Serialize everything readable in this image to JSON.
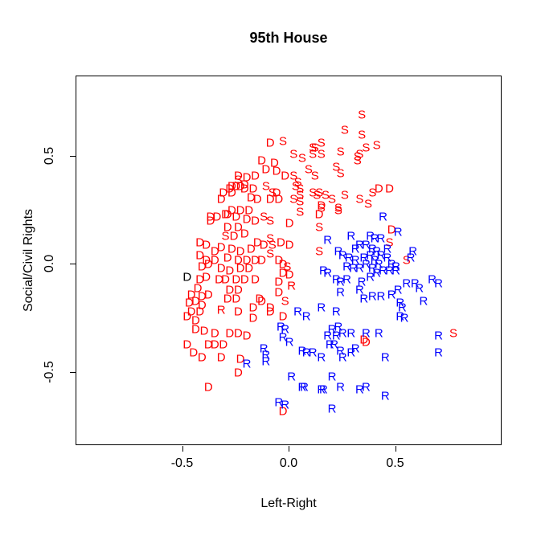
{
  "chart_data": {
    "type": "scatter",
    "title": "95th House",
    "xlabel": "Left-Right",
    "ylabel": "Social/Civil Rights",
    "xlim": [
      -1.0,
      1.0
    ],
    "ylim": [
      -0.84,
      0.87
    ],
    "grid": false,
    "x_ticks": [
      {
        "value": -0.5,
        "label": "-0.5"
      },
      {
        "value": 0.0,
        "label": "0.0"
      },
      {
        "value": 0.5,
        "label": "0.5"
      }
    ],
    "y_ticks": [
      {
        "value": -0.5,
        "label": "-0.5"
      },
      {
        "value": 0.0,
        "label": "0.0"
      },
      {
        "value": 0.5,
        "label": "0.5"
      }
    ],
    "point_colors": {
      "red": "#ff0000",
      "blue": "#0000ff",
      "black": "#000000"
    },
    "series": [
      {
        "name": "D-red",
        "letter": "D",
        "color": "#ff0000",
        "points": [
          [
            -0.09,
            0.56
          ],
          [
            -0.13,
            0.48
          ],
          [
            -0.07,
            0.47
          ],
          [
            -0.11,
            0.44
          ],
          [
            -0.06,
            0.43
          ],
          [
            -0.02,
            0.41
          ],
          [
            -0.24,
            0.41
          ],
          [
            -0.2,
            0.4
          ],
          [
            -0.16,
            0.41
          ],
          [
            -0.27,
            0.36
          ],
          [
            -0.25,
            0.36
          ],
          [
            -0.21,
            0.37
          ],
          [
            -0.17,
            0.35
          ],
          [
            -0.31,
            0.33
          ],
          [
            -0.28,
            0.35
          ],
          [
            -0.23,
            0.36
          ],
          [
            -0.21,
            0.35
          ],
          [
            -0.06,
            0.33
          ],
          [
            0.15,
            0.27
          ],
          [
            -0.32,
            0.3
          ],
          [
            -0.27,
            0.25
          ],
          [
            -0.34,
            0.22
          ],
          [
            -0.3,
            0.23
          ],
          [
            -0.37,
            0.22
          ],
          [
            -0.23,
            0.25
          ],
          [
            -0.19,
            0.25
          ],
          [
            0.14,
            0.23
          ],
          [
            0.0,
            0.19
          ],
          [
            -0.29,
            0.23
          ],
          [
            -0.25,
            0.22
          ],
          [
            -0.2,
            0.21
          ],
          [
            -0.16,
            0.2
          ],
          [
            -0.29,
            0.17
          ],
          [
            -0.24,
            0.17
          ],
          [
            -0.37,
            0.2
          ],
          [
            -0.26,
            0.13
          ],
          [
            -0.21,
            0.14
          ],
          [
            -0.42,
            0.1
          ],
          [
            -0.39,
            0.09
          ],
          [
            -0.15,
            0.1
          ],
          [
            -0.12,
            0.09
          ],
          [
            -0.04,
            0.1
          ],
          [
            0.0,
            0.09
          ],
          [
            -0.35,
            0.06
          ],
          [
            -0.42,
            0.04
          ],
          [
            -0.39,
            0.02
          ],
          [
            -0.35,
            0.02
          ],
          [
            -0.32,
            0.08
          ],
          [
            -0.27,
            0.07
          ],
          [
            -0.23,
            0.06
          ],
          [
            -0.18,
            0.07
          ],
          [
            -0.05,
            0.02
          ],
          [
            -0.41,
            -0.01
          ],
          [
            -0.38,
            0.0
          ],
          [
            -0.29,
            0.03
          ],
          [
            -0.24,
            0.02
          ],
          [
            -0.2,
            0.02
          ],
          [
            -0.16,
            0.02
          ],
          [
            -0.13,
            0.02
          ],
          [
            -0.03,
            0.0
          ],
          [
            -0.32,
            -0.02
          ],
          [
            -0.28,
            -0.03
          ],
          [
            -0.23,
            -0.02
          ],
          [
            -0.19,
            -0.02
          ],
          [
            -0.03,
            -0.04
          ],
          [
            0.0,
            -0.05
          ],
          [
            -0.42,
            -0.07
          ],
          [
            -0.39,
            -0.06
          ],
          [
            -0.33,
            -0.07
          ],
          [
            -0.3,
            -0.07
          ],
          [
            -0.25,
            -0.07
          ],
          [
            -0.21,
            -0.07
          ],
          [
            -0.16,
            -0.07
          ],
          [
            -0.05,
            -0.08
          ],
          [
            -0.43,
            -0.11
          ],
          [
            -0.46,
            -0.14
          ],
          [
            -0.41,
            -0.15
          ],
          [
            -0.38,
            -0.14
          ],
          [
            -0.28,
            -0.12
          ],
          [
            -0.24,
            -0.12
          ],
          [
            -0.05,
            -0.13
          ],
          [
            -0.47,
            -0.18
          ],
          [
            -0.44,
            -0.17
          ],
          [
            -0.41,
            -0.19
          ],
          [
            -0.29,
            -0.16
          ],
          [
            -0.25,
            -0.16
          ],
          [
            -0.14,
            -0.16
          ],
          [
            -0.13,
            -0.17
          ],
          [
            -0.46,
            -0.22
          ],
          [
            -0.42,
            -0.22
          ],
          [
            -0.09,
            -0.2
          ],
          [
            -0.17,
            -0.2
          ],
          [
            -0.48,
            -0.24
          ],
          [
            -0.44,
            -0.26
          ],
          [
            -0.24,
            -0.22
          ],
          [
            -0.09,
            -0.22
          ],
          [
            -0.03,
            -0.24
          ],
          [
            -0.17,
            -0.25
          ],
          [
            -0.44,
            -0.3
          ],
          [
            -0.4,
            -0.31
          ],
          [
            -0.35,
            -0.32
          ],
          [
            -0.48,
            -0.37
          ],
          [
            -0.38,
            -0.37
          ],
          [
            -0.35,
            -0.37
          ],
          [
            -0.45,
            -0.41
          ],
          [
            -0.41,
            -0.43
          ],
          [
            -0.38,
            -0.57
          ],
          [
            -0.28,
            -0.32
          ],
          [
            -0.24,
            -0.32
          ],
          [
            -0.2,
            -0.33
          ],
          [
            -0.31,
            -0.37
          ],
          [
            -0.32,
            -0.43
          ],
          [
            -0.23,
            -0.44
          ],
          [
            -0.24,
            -0.5
          ],
          [
            -0.03,
            -0.68
          ],
          [
            0.35,
            -0.35
          ],
          [
            0.42,
            0.35
          ],
          [
            0.47,
            0.35
          ],
          [
            0.48,
            0.16
          ],
          [
            0.36,
            -0.36
          ],
          [
            -0.27,
            0.33
          ],
          [
            -0.18,
            0.31
          ],
          [
            -0.15,
            0.3
          ],
          [
            -0.09,
            0.3
          ],
          [
            -0.05,
            0.3
          ]
        ]
      },
      {
        "name": "S-red",
        "letter": "S",
        "color": "#ff0000",
        "points": [
          [
            0.34,
            0.69
          ],
          [
            0.26,
            0.62
          ],
          [
            0.34,
            0.6
          ],
          [
            0.15,
            0.56
          ],
          [
            0.12,
            0.54
          ],
          [
            0.41,
            0.55
          ],
          [
            0.36,
            0.54
          ],
          [
            0.24,
            0.52
          ],
          [
            -0.03,
            0.57
          ],
          [
            0.02,
            0.51
          ],
          [
            0.06,
            0.49
          ],
          [
            0.11,
            0.54
          ],
          [
            0.11,
            0.51
          ],
          [
            0.15,
            0.51
          ],
          [
            0.32,
            0.5
          ],
          [
            0.33,
            0.51
          ],
          [
            0.32,
            0.48
          ],
          [
            -0.09,
            0.2
          ],
          [
            0.09,
            0.44
          ],
          [
            0.12,
            0.41
          ],
          [
            0.22,
            0.45
          ],
          [
            0.24,
            0.42
          ],
          [
            0.02,
            0.41
          ],
          [
            -0.24,
            0.39
          ],
          [
            0.04,
            0.38
          ],
          [
            0.05,
            0.35
          ],
          [
            0.11,
            0.33
          ],
          [
            0.14,
            0.33
          ],
          [
            0.26,
            0.32
          ],
          [
            0.39,
            0.33
          ],
          [
            0.37,
            0.28
          ],
          [
            -0.11,
            0.36
          ],
          [
            -0.08,
            0.33
          ],
          [
            0.03,
            0.36
          ],
          [
            0.05,
            0.32
          ],
          [
            0.13,
            0.32
          ],
          [
            0.17,
            0.32
          ],
          [
            0.2,
            0.3
          ],
          [
            0.33,
            0.3
          ],
          [
            0.23,
            0.26
          ],
          [
            0.05,
            0.29
          ],
          [
            0.02,
            0.3
          ],
          [
            -0.12,
            0.22
          ],
          [
            0.15,
            0.26
          ],
          [
            0.23,
            0.25
          ],
          [
            0.05,
            0.24
          ],
          [
            0.14,
            0.17
          ],
          [
            -0.09,
            0.12
          ],
          [
            -0.08,
            0.09
          ],
          [
            -0.09,
            0.05
          ],
          [
            -0.01,
            -0.01
          ],
          [
            0.14,
            0.06
          ],
          [
            0.47,
            0.1
          ],
          [
            0.55,
            0.02
          ],
          [
            -0.02,
            -0.17
          ],
          [
            0.77,
            -0.32
          ],
          [
            -0.3,
            0.13
          ]
        ]
      },
      {
        "name": "R-blue",
        "letter": "R",
        "color": "#0000ff",
        "points": [
          [
            0.18,
            0.11
          ],
          [
            0.29,
            0.13
          ],
          [
            0.23,
            0.06
          ],
          [
            0.25,
            0.04
          ],
          [
            0.31,
            0.07
          ],
          [
            0.33,
            0.09
          ],
          [
            0.28,
            0.03
          ],
          [
            0.31,
            0.02
          ],
          [
            0.35,
            0.03
          ],
          [
            0.27,
            -0.01
          ],
          [
            0.3,
            -0.02
          ],
          [
            0.33,
            -0.02
          ],
          [
            0.16,
            -0.03
          ],
          [
            0.18,
            -0.04
          ],
          [
            0.22,
            -0.07
          ],
          [
            0.24,
            -0.08
          ],
          [
            0.27,
            -0.07
          ],
          [
            0.34,
            -0.08
          ],
          [
            0.24,
            -0.13
          ],
          [
            0.33,
            -0.12
          ],
          [
            0.35,
            -0.16
          ],
          [
            0.44,
            0.22
          ],
          [
            0.51,
            0.15
          ],
          [
            0.38,
            0.13
          ],
          [
            0.4,
            0.12
          ],
          [
            0.43,
            0.12
          ],
          [
            0.46,
            0.07
          ],
          [
            0.58,
            0.06
          ],
          [
            0.36,
            0.09
          ],
          [
            0.39,
            0.07
          ],
          [
            0.41,
            0.06
          ],
          [
            0.38,
            0.04
          ],
          [
            0.43,
            0.04
          ],
          [
            0.46,
            0.03
          ],
          [
            0.4,
            0.02
          ],
          [
            0.36,
            0.0
          ],
          [
            0.42,
            0.0
          ],
          [
            0.48,
            0.0
          ],
          [
            0.5,
            -0.01
          ],
          [
            0.39,
            -0.02
          ],
          [
            0.44,
            -0.03
          ],
          [
            0.47,
            -0.03
          ],
          [
            0.5,
            -0.03
          ],
          [
            0.41,
            -0.04
          ],
          [
            0.57,
            0.03
          ],
          [
            0.38,
            -0.06
          ],
          [
            0.55,
            -0.09
          ],
          [
            0.59,
            -0.09
          ],
          [
            0.67,
            -0.07
          ],
          [
            0.7,
            -0.09
          ],
          [
            0.51,
            -0.12
          ],
          [
            0.61,
            -0.11
          ],
          [
            0.39,
            -0.15
          ],
          [
            0.43,
            -0.15
          ],
          [
            0.48,
            -0.14
          ],
          [
            0.52,
            -0.18
          ],
          [
            0.63,
            -0.17
          ],
          [
            0.53,
            -0.2
          ],
          [
            0.52,
            -0.24
          ],
          [
            0.54,
            -0.25
          ],
          [
            0.04,
            -0.22
          ],
          [
            0.08,
            -0.24
          ],
          [
            0.15,
            -0.2
          ],
          [
            0.22,
            -0.22
          ],
          [
            -0.2,
            -0.46
          ],
          [
            -0.12,
            -0.39
          ],
          [
            -0.11,
            -0.42
          ],
          [
            -0.11,
            -0.45
          ],
          [
            -0.04,
            -0.29
          ],
          [
            -0.02,
            -0.3
          ],
          [
            -0.03,
            -0.34
          ],
          [
            0.0,
            -0.36
          ],
          [
            0.06,
            -0.4
          ],
          [
            0.08,
            -0.41
          ],
          [
            0.11,
            -0.41
          ],
          [
            0.15,
            -0.43
          ],
          [
            0.18,
            -0.33
          ],
          [
            0.2,
            -0.3
          ],
          [
            0.23,
            -0.29
          ],
          [
            0.25,
            -0.32
          ],
          [
            0.22,
            -0.33
          ],
          [
            0.19,
            -0.37
          ],
          [
            0.21,
            -0.37
          ],
          [
            0.24,
            -0.4
          ],
          [
            0.29,
            -0.32
          ],
          [
            0.31,
            -0.39
          ],
          [
            0.29,
            -0.41
          ],
          [
            0.25,
            -0.43
          ],
          [
            0.01,
            -0.52
          ],
          [
            0.06,
            -0.57
          ],
          [
            0.07,
            -0.57
          ],
          [
            0.15,
            -0.58
          ],
          [
            0.2,
            -0.52
          ],
          [
            0.24,
            -0.57
          ],
          [
            0.33,
            -0.58
          ],
          [
            -0.05,
            -0.64
          ],
          [
            -0.02,
            -0.65
          ],
          [
            0.2,
            -0.67
          ],
          [
            0.42,
            -0.32
          ],
          [
            0.36,
            -0.32
          ],
          [
            0.45,
            -0.43
          ],
          [
            0.7,
            -0.33
          ],
          [
            0.7,
            -0.41
          ],
          [
            0.36,
            -0.57
          ],
          [
            0.45,
            -0.61
          ],
          [
            0.16,
            -0.58
          ]
        ]
      },
      {
        "name": "R-red",
        "letter": "R",
        "color": "#ff0000",
        "points": [
          [
            0.01,
            -0.1
          ],
          [
            -0.32,
            -0.21
          ]
        ]
      },
      {
        "name": "D-black",
        "letter": "D",
        "color": "#000000",
        "points": [
          [
            -0.48,
            -0.06
          ]
        ]
      }
    ]
  }
}
